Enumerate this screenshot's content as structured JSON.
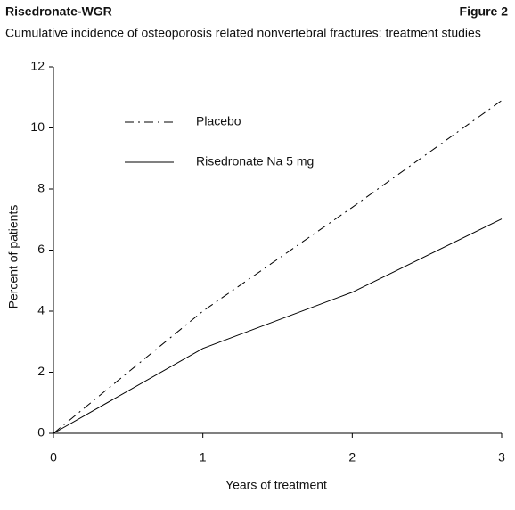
{
  "header": {
    "title": "Risedronate-WGR",
    "figure": "Figure 2",
    "subtitle": "Cumulative incidence of osteoporosis related nonvertebral fractures: treatment studies"
  },
  "chart_data": {
    "type": "line",
    "x": [
      0,
      1,
      2,
      3
    ],
    "series": [
      {
        "name": "Placebo",
        "color": "#000000",
        "style": "dashdot",
        "values": [
          0,
          4.0,
          7.4,
          10.9
        ]
      },
      {
        "name": "Risedronate Na 5 mg",
        "color": "#000000",
        "style": "solid",
        "values": [
          0,
          2.78,
          4.62,
          7.02
        ]
      }
    ],
    "xlabel": "Years of treatment",
    "ylabel": "Percent of patients",
    "xlim": [
      0,
      3
    ],
    "xticks": [
      0,
      1,
      2,
      3
    ],
    "ylim": [
      0,
      12
    ],
    "yticks": [
      0,
      2,
      4,
      6,
      8,
      10,
      12
    ],
    "grid": false,
    "legend": "upper left"
  }
}
